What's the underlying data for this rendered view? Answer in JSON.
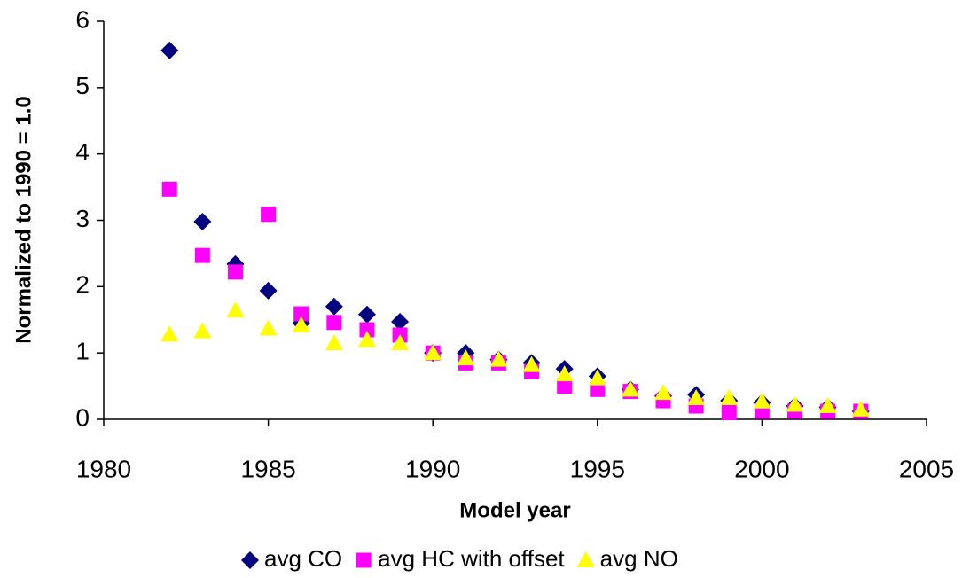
{
  "chart_data": {
    "type": "scatter",
    "xlabel": "Model year",
    "ylabel": "Normalized to 1990 = 1.0",
    "x": [
      1982,
      1983,
      1984,
      1985,
      1986,
      1987,
      1988,
      1989,
      1990,
      1991,
      1992,
      1993,
      1994,
      1995,
      1996,
      1997,
      1998,
      1999,
      2000,
      2001,
      2002,
      2003
    ],
    "series": [
      {
        "name": "avg CO",
        "color": "#000080",
        "marker": "diamond",
        "values": [
          5.56,
          2.98,
          2.34,
          1.94,
          1.45,
          1.7,
          1.58,
          1.47,
          1.0,
          1.0,
          0.9,
          0.85,
          0.76,
          0.65,
          0.45,
          0.35,
          0.37,
          0.28,
          0.25,
          0.2,
          0.18,
          0.12
        ]
      },
      {
        "name": "avg HC with offset",
        "color": "#ff00ff",
        "marker": "square",
        "values": [
          3.47,
          2.47,
          2.22,
          3.09,
          1.59,
          1.46,
          1.35,
          1.27,
          1.0,
          0.85,
          0.85,
          0.72,
          0.5,
          0.45,
          0.42,
          0.28,
          0.2,
          0.1,
          0.12,
          0.12,
          0.12,
          0.12
        ]
      },
      {
        "name": "avg NO",
        "color": "#ffff00",
        "marker": "triangle",
        "values": [
          1.28,
          1.33,
          1.64,
          1.37,
          1.42,
          1.15,
          1.2,
          1.15,
          1.0,
          0.92,
          0.9,
          0.82,
          0.68,
          0.62,
          0.45,
          0.4,
          0.32,
          0.32,
          0.27,
          0.22,
          0.2,
          0.15
        ]
      }
    ],
    "xlim": [
      1980,
      2005
    ],
    "xticks": [
      1980,
      1985,
      1990,
      1995,
      2000,
      2005
    ],
    "ylim": [
      0,
      6
    ],
    "yticks": [
      0,
      1,
      2,
      3,
      4,
      5,
      6
    ],
    "grid": false,
    "legend": "bottom"
  }
}
